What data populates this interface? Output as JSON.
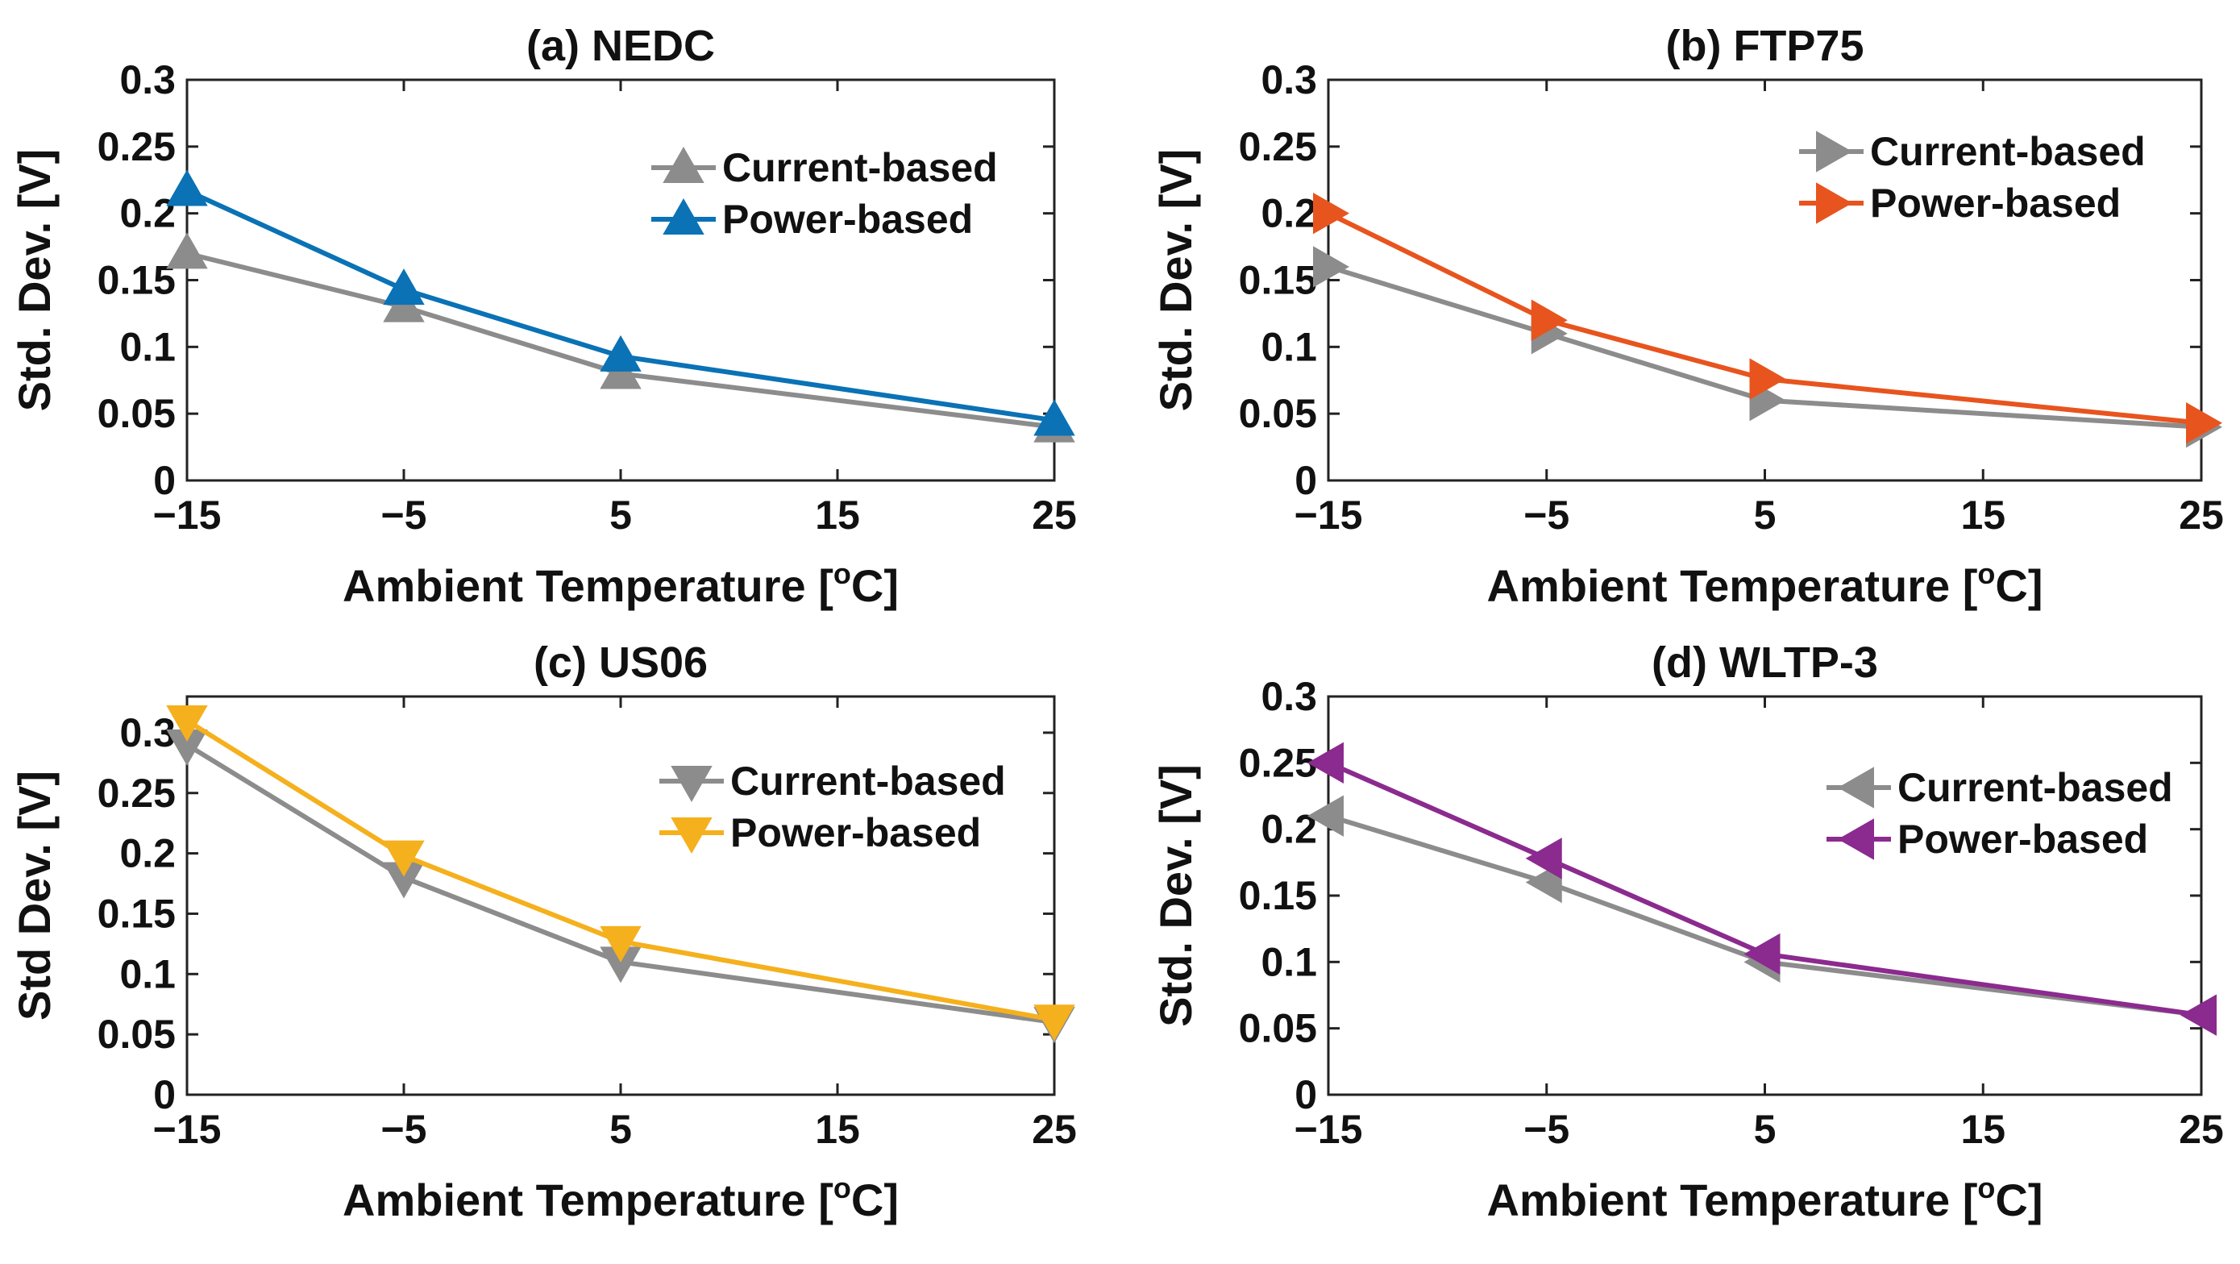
{
  "figure": {
    "chart_data": [
      {
        "type": "line",
        "title": "(a) NEDC",
        "xlabel": "Ambient Temperature [",
        "xlabel_sup": "o",
        "xlabel_end": "C]",
        "ylabel": "Std. Dev. [V]",
        "x": [
          -15,
          -5,
          5,
          25
        ],
        "xlim": [
          -15,
          25
        ],
        "ylim": [
          0,
          0.3
        ],
        "xticks": [
          "−15",
          "−5",
          "5",
          "15",
          "25"
        ],
        "xtick_values": [
          -15,
          -5,
          5,
          15,
          25
        ],
        "yticks": [
          "0",
          "0.05",
          "0.1",
          "0.15",
          "0.2",
          "0.25",
          "0.3"
        ],
        "ytick_values": [
          0,
          0.05,
          0.1,
          0.15,
          0.2,
          0.25,
          0.3
        ],
        "marker": "triangle-up",
        "legend_position": "top-right",
        "series": [
          {
            "name": "Current-based",
            "color": "#8c8c8c",
            "values": [
              0.17,
              0.13,
              0.08,
              0.04
            ]
          },
          {
            "name": "Power-based",
            "color": "#0a72b5",
            "values": [
              0.217,
              0.143,
              0.093,
              0.045
            ]
          }
        ]
      },
      {
        "type": "line",
        "title": "(b) FTP75",
        "xlabel": "Ambient Temperature [",
        "xlabel_sup": "o",
        "xlabel_end": "C]",
        "ylabel": "Std. Dev. [V]",
        "x": [
          -15,
          -5,
          5,
          25
        ],
        "xlim": [
          -15,
          25
        ],
        "ylim": [
          0,
          0.3
        ],
        "xticks": [
          "−15",
          "−5",
          "5",
          "15",
          "25"
        ],
        "xtick_values": [
          -15,
          -5,
          5,
          15,
          25
        ],
        "yticks": [
          "0",
          "0.05",
          "0.1",
          "0.15",
          "0.2",
          "0.25",
          "0.3"
        ],
        "ytick_values": [
          0,
          0.05,
          0.1,
          0.15,
          0.2,
          0.25,
          0.3
        ],
        "marker": "triangle-right",
        "legend_position": "top-right",
        "series": [
          {
            "name": "Current-based",
            "color": "#8c8c8c",
            "values": [
              0.16,
              0.11,
              0.06,
              0.04
            ]
          },
          {
            "name": "Power-based",
            "color": "#e8541e",
            "values": [
              0.2,
              0.12,
              0.076,
              0.043
            ]
          }
        ]
      },
      {
        "type": "line",
        "title": "(c) US06",
        "xlabel": "Ambient Temperature [",
        "xlabel_sup": "o",
        "xlabel_end": "C]",
        "ylabel": "Std Dev. [V]",
        "x": [
          -15,
          -5,
          5,
          25
        ],
        "xlim": [
          -15,
          25
        ],
        "ylim": [
          0,
          0.33
        ],
        "xticks": [
          "−15",
          "−5",
          "5",
          "15",
          "25"
        ],
        "xtick_values": [
          -15,
          -5,
          5,
          15,
          25
        ],
        "yticks": [
          "0",
          "0.05",
          "0.1",
          "0.15",
          "0.2",
          "0.25",
          "0.3"
        ],
        "ytick_values": [
          0,
          0.05,
          0.1,
          0.15,
          0.2,
          0.25,
          0.3
        ],
        "marker": "triangle-down",
        "legend_position": "top-right",
        "series": [
          {
            "name": "Current-based",
            "color": "#8c8c8c",
            "values": [
              0.29,
              0.18,
              0.11,
              0.06
            ]
          },
          {
            "name": "Power-based",
            "color": "#f5b01d",
            "values": [
              0.31,
              0.198,
              0.127,
              0.062
            ]
          }
        ]
      },
      {
        "type": "line",
        "title": "(d) WLTP-3",
        "xlabel": "Ambient Temperature [",
        "xlabel_sup": "o",
        "xlabel_end": "C]",
        "ylabel": "Std. Dev. [V]",
        "x": [
          -15,
          -5,
          5,
          25
        ],
        "xlim": [
          -15,
          25
        ],
        "ylim": [
          0,
          0.3
        ],
        "xticks": [
          "−15",
          "−5",
          "5",
          "15",
          "25"
        ],
        "xtick_values": [
          -15,
          -5,
          5,
          15,
          25
        ],
        "yticks": [
          "0",
          "0.05",
          "0.1",
          "0.15",
          "0.2",
          "0.25",
          "0.3"
        ],
        "ytick_values": [
          0,
          0.05,
          0.1,
          0.15,
          0.2,
          0.25,
          0.3
        ],
        "marker": "triangle-left",
        "legend_position": "top-right",
        "series": [
          {
            "name": "Current-based",
            "color": "#8c8c8c",
            "values": [
              0.21,
              0.16,
              0.1,
              0.06
            ]
          },
          {
            "name": "Power-based",
            "color": "#8b2a8f",
            "values": [
              0.25,
              0.178,
              0.106,
              0.06
            ]
          }
        ]
      }
    ]
  }
}
